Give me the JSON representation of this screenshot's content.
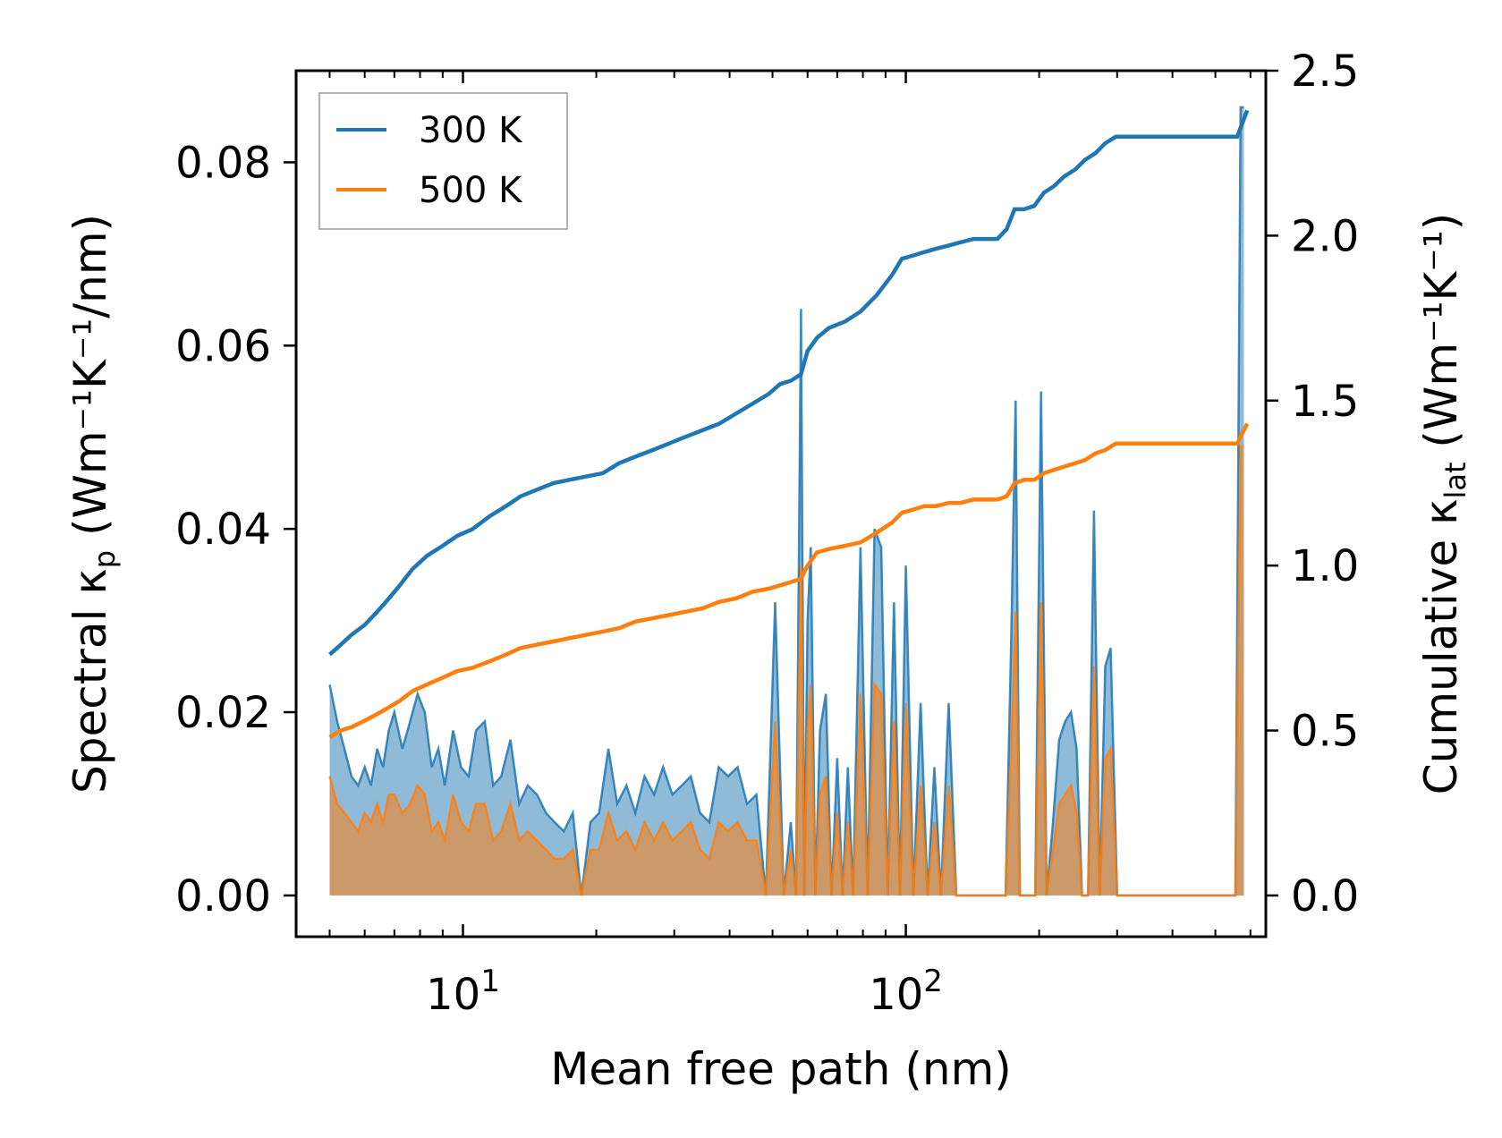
{
  "chart_data": {
    "type": "line",
    "xlabel": "Mean free path (nm)",
    "ylabel_left": {
      "text": "Spectral κ",
      "sub": "p",
      "unit": " (Wm⁻¹K⁻¹/nm)"
    },
    "ylabel_right": {
      "text": "Cumulative κ",
      "sub": "lat",
      "unit": " (Wm⁻¹K⁻¹)"
    },
    "xscale": "log",
    "xlim": [
      4.2,
      650
    ],
    "ylim_left": [
      -0.0045,
      0.09
    ],
    "ylim_right": [
      -0.125,
      2.5
    ],
    "x_ticks": [
      {
        "value": 10,
        "base": "10",
        "exp": "1"
      },
      {
        "value": 100,
        "base": "10",
        "exp": "2"
      }
    ],
    "y_ticks_left": [
      "0.00",
      "0.02",
      "0.04",
      "0.06",
      "0.08"
    ],
    "y_ticks_right": [
      "0.0",
      "0.5",
      "1.0",
      "1.5",
      "2.0",
      "2.5"
    ],
    "legend": {
      "position": "top-left",
      "entries": [
        {
          "label": "300 K",
          "color": "#1f77b4"
        },
        {
          "label": "500 K",
          "color": "#ff7f0e"
        }
      ]
    },
    "series": [
      {
        "name": "300 K",
        "color": "#1f77b4",
        "cumulative": {
          "x": [
            5.0,
            5.3,
            5.6,
            6.0,
            6.4,
            6.8,
            7.2,
            7.7,
            8.3,
            9.0,
            9.7,
            10.5,
            11.5,
            12.5,
            13.5,
            14.7,
            16.0,
            17.4,
            19.0,
            20.7,
            22.5,
            24.5,
            26.8,
            29.2,
            31.8,
            34.7,
            37.9,
            41.3,
            45.0,
            49.0,
            52.0,
            55.0,
            58.0,
            60.0,
            63.0,
            67.0,
            73.0,
            79.0,
            86.0,
            93.0,
            98.0,
            104.0,
            110.0,
            117.0,
            125.0,
            133.0,
            142.0,
            151.0,
            161.0,
            169.0,
            176.0,
            185.0,
            195.0,
            205.0,
            216.0,
            228.0,
            241.0,
            254.0,
            268.0,
            282.0,
            298.0,
            314.0,
            340.0,
            400.0,
            470.0,
            560.0,
            590.0
          ],
          "y": [
            0.73,
            0.76,
            0.79,
            0.82,
            0.86,
            0.9,
            0.94,
            0.99,
            1.03,
            1.06,
            1.09,
            1.11,
            1.15,
            1.18,
            1.21,
            1.23,
            1.25,
            1.26,
            1.27,
            1.28,
            1.31,
            1.33,
            1.35,
            1.37,
            1.39,
            1.41,
            1.43,
            1.46,
            1.49,
            1.52,
            1.55,
            1.56,
            1.58,
            1.65,
            1.69,
            1.72,
            1.74,
            1.77,
            1.82,
            1.88,
            1.93,
            1.94,
            1.95,
            1.96,
            1.97,
            1.98,
            1.99,
            1.99,
            1.99,
            2.02,
            2.08,
            2.08,
            2.09,
            2.13,
            2.15,
            2.18,
            2.2,
            2.23,
            2.25,
            2.28,
            2.3,
            2.3,
            2.3,
            2.3,
            2.3,
            2.3,
            2.38
          ]
        },
        "spectral": {
          "x": [
            5.0,
            5.2,
            5.4,
            5.6,
            5.8,
            6.0,
            6.2,
            6.4,
            6.6,
            6.8,
            7.0,
            7.3,
            7.6,
            7.9,
            8.2,
            8.5,
            8.8,
            9.1,
            9.5,
            9.9,
            10.3,
            10.7,
            11.2,
            11.7,
            12.2,
            12.8,
            13.4,
            14.0,
            14.7,
            15.4,
            16.1,
            16.9,
            17.7,
            18.5,
            19.4,
            20.3,
            21.3,
            22.3,
            23.4,
            24.5,
            25.7,
            27.0,
            28.3,
            29.7,
            31.2,
            32.7,
            34.3,
            36.0,
            37.8,
            39.7,
            41.7,
            43.8,
            46.0,
            48.3,
            50.7,
            53.0,
            55.0,
            56.5,
            58.0,
            59.0,
            60.0,
            61.0,
            62.5,
            64.0,
            66.0,
            68.0,
            70.0,
            72.0,
            74.0,
            76.0,
            79.0,
            82.0,
            85.0,
            88.0,
            91.0,
            94.0,
            97.0,
            100.0,
            104.0,
            108.0,
            112.0,
            116.0,
            120.0,
            125.0,
            130.0,
            135.0,
            140.0,
            147.0,
            154.0,
            161.0,
            168.0,
            173.0,
            177.0,
            181.0,
            185.0,
            190.0,
            196.0,
            202.0,
            208.0,
            215.0,
            222.0,
            229.0,
            236.0,
            243.0,
            250.0,
            258.0,
            266.0,
            274.0,
            282.0,
            290.0,
            300.0,
            320.0,
            350.0,
            400.0,
            450.0,
            500.0,
            540.0,
            555.0,
            570.0,
            580.0
          ],
          "y": [
            0.023,
            0.019,
            0.016,
            0.013,
            0.012,
            0.014,
            0.012,
            0.016,
            0.014,
            0.018,
            0.02,
            0.016,
            0.019,
            0.022,
            0.02,
            0.014,
            0.016,
            0.012,
            0.018,
            0.014,
            0.013,
            0.018,
            0.019,
            0.012,
            0.013,
            0.017,
            0.01,
            0.012,
            0.011,
            0.009,
            0.008,
            0.007,
            0.009,
            0.0,
            0.008,
            0.009,
            0.016,
            0.01,
            0.012,
            0.009,
            0.013,
            0.011,
            0.014,
            0.011,
            0.012,
            0.013,
            0.009,
            0.008,
            0.014,
            0.013,
            0.014,
            0.01,
            0.011,
            0.0,
            0.032,
            0.0,
            0.008,
            0.0,
            0.064,
            0.0,
            0.03,
            0.038,
            0.0,
            0.018,
            0.022,
            0.0,
            0.015,
            0.0,
            0.014,
            0.0,
            0.038,
            0.0,
            0.04,
            0.038,
            0.0,
            0.032,
            0.0,
            0.036,
            0.0,
            0.021,
            0.0,
            0.014,
            0.0,
            0.021,
            0.0,
            0.0,
            0.0,
            0.0,
            0.0,
            0.0,
            0.0,
            0.028,
            0.054,
            0.0,
            0.0,
            0.0,
            0.0,
            0.055,
            0.0,
            0.008,
            0.017,
            0.019,
            0.02,
            0.016,
            0.0,
            0.0,
            0.042,
            0.0,
            0.025,
            0.027,
            0.0,
            0.0,
            0.0,
            0.0,
            0.0,
            0.0,
            0.0,
            0.0,
            0.086,
            0.086
          ]
        }
      },
      {
        "name": "500 K",
        "color": "#ff7f0e",
        "cumulative": {
          "x": [
            5.0,
            5.3,
            5.6,
            6.0,
            6.4,
            6.8,
            7.2,
            7.7,
            8.3,
            9.0,
            9.7,
            10.5,
            11.5,
            12.5,
            13.5,
            14.7,
            16.0,
            17.4,
            19.0,
            20.7,
            22.5,
            24.5,
            26.8,
            29.2,
            31.8,
            34.7,
            37.9,
            41.3,
            45.0,
            49.0,
            52.0,
            55.0,
            58.0,
            60.0,
            63.0,
            67.0,
            73.0,
            79.0,
            86.0,
            93.0,
            98.0,
            104.0,
            110.0,
            117.0,
            125.0,
            133.0,
            142.0,
            151.0,
            161.0,
            169.0,
            176.0,
            185.0,
            195.0,
            205.0,
            216.0,
            228.0,
            241.0,
            254.0,
            268.0,
            282.0,
            298.0,
            314.0,
            340.0,
            400.0,
            470.0,
            560.0,
            590.0
          ],
          "y": [
            0.48,
            0.5,
            0.51,
            0.53,
            0.55,
            0.57,
            0.59,
            0.62,
            0.64,
            0.66,
            0.68,
            0.69,
            0.71,
            0.73,
            0.75,
            0.76,
            0.77,
            0.78,
            0.79,
            0.8,
            0.81,
            0.83,
            0.84,
            0.85,
            0.86,
            0.87,
            0.89,
            0.9,
            0.92,
            0.93,
            0.94,
            0.95,
            0.96,
            1.0,
            1.04,
            1.05,
            1.06,
            1.07,
            1.1,
            1.13,
            1.16,
            1.17,
            1.18,
            1.18,
            1.19,
            1.19,
            1.2,
            1.2,
            1.2,
            1.21,
            1.25,
            1.26,
            1.26,
            1.28,
            1.29,
            1.3,
            1.31,
            1.32,
            1.34,
            1.35,
            1.37,
            1.37,
            1.37,
            1.37,
            1.37,
            1.37,
            1.43
          ]
        },
        "spectral": {
          "x": [
            5.0,
            5.2,
            5.4,
            5.6,
            5.8,
            6.0,
            6.2,
            6.4,
            6.6,
            6.8,
            7.0,
            7.3,
            7.6,
            7.9,
            8.2,
            8.5,
            8.8,
            9.1,
            9.5,
            9.9,
            10.3,
            10.7,
            11.2,
            11.7,
            12.2,
            12.8,
            13.4,
            14.0,
            14.7,
            15.4,
            16.1,
            16.9,
            17.7,
            18.5,
            19.4,
            20.3,
            21.3,
            22.3,
            23.4,
            24.5,
            25.7,
            27.0,
            28.3,
            29.7,
            31.2,
            32.7,
            34.3,
            36.0,
            37.8,
            39.7,
            41.7,
            43.8,
            46.0,
            48.3,
            50.7,
            53.0,
            55.0,
            56.5,
            58.0,
            59.0,
            60.0,
            61.0,
            62.5,
            64.0,
            66.0,
            68.0,
            70.0,
            72.0,
            74.0,
            76.0,
            79.0,
            82.0,
            85.0,
            88.0,
            91.0,
            94.0,
            97.0,
            100.0,
            104.0,
            108.0,
            112.0,
            116.0,
            120.0,
            125.0,
            130.0,
            135.0,
            140.0,
            147.0,
            154.0,
            161.0,
            168.0,
            173.0,
            177.0,
            181.0,
            185.0,
            190.0,
            196.0,
            202.0,
            208.0,
            215.0,
            222.0,
            229.0,
            236.0,
            243.0,
            250.0,
            258.0,
            266.0,
            274.0,
            282.0,
            290.0,
            300.0,
            320.0,
            350.0,
            400.0,
            450.0,
            500.0,
            540.0,
            555.0,
            570.0,
            580.0
          ],
          "y": [
            0.013,
            0.01,
            0.009,
            0.008,
            0.007,
            0.009,
            0.008,
            0.01,
            0.008,
            0.011,
            0.011,
            0.009,
            0.01,
            0.012,
            0.011,
            0.007,
            0.008,
            0.006,
            0.011,
            0.008,
            0.007,
            0.01,
            0.01,
            0.006,
            0.007,
            0.01,
            0.006,
            0.007,
            0.006,
            0.005,
            0.004,
            0.004,
            0.005,
            0.0,
            0.005,
            0.005,
            0.009,
            0.006,
            0.007,
            0.005,
            0.008,
            0.006,
            0.008,
            0.006,
            0.007,
            0.008,
            0.005,
            0.004,
            0.008,
            0.007,
            0.008,
            0.006,
            0.006,
            0.0,
            0.019,
            0.0,
            0.005,
            0.0,
            0.036,
            0.0,
            0.018,
            0.023,
            0.0,
            0.011,
            0.013,
            0.0,
            0.009,
            0.0,
            0.008,
            0.0,
            0.022,
            0.0,
            0.023,
            0.022,
            0.0,
            0.019,
            0.0,
            0.021,
            0.0,
            0.012,
            0.0,
            0.008,
            0.0,
            0.012,
            0.0,
            0.0,
            0.0,
            0.0,
            0.0,
            0.0,
            0.0,
            0.016,
            0.031,
            0.0,
            0.0,
            0.0,
            0.0,
            0.032,
            0.0,
            0.005,
            0.01,
            0.011,
            0.012,
            0.009,
            0.0,
            0.0,
            0.025,
            0.0,
            0.015,
            0.016,
            0.0,
            0.0,
            0.0,
            0.0,
            0.0,
            0.0,
            0.0,
            0.0,
            0.049,
            0.049
          ]
        }
      }
    ]
  }
}
